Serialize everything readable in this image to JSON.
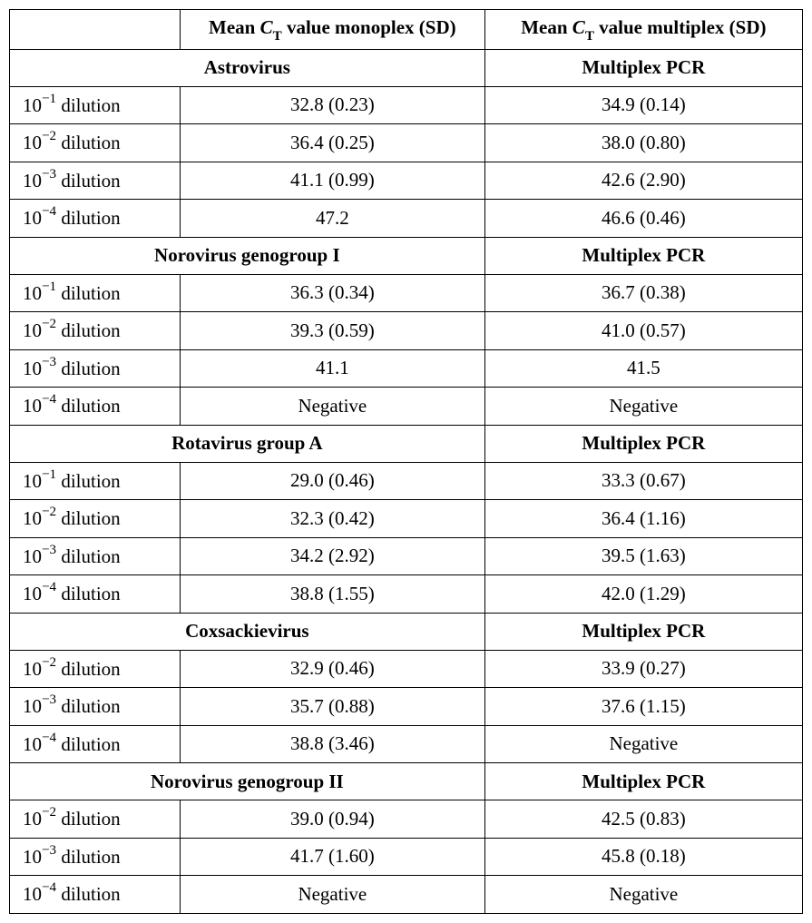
{
  "table": {
    "background_color": "#ffffff",
    "border_color": "#000000",
    "text_color": "#000000",
    "font_family_serif": "Georgia, Times New Roman, serif",
    "base_font_size_pt": 21,
    "headers": {
      "col1": "",
      "col2_pre": "Mean ",
      "col2_ct": "C",
      "col2_t": "T",
      "col2_post": " value monoplex (SD)",
      "col3_pre": "Mean ",
      "col3_ct": "C",
      "col3_t": "T",
      "col3_post": " value multiplex (SD)"
    },
    "sections": [
      {
        "left_label": "Astrovirus",
        "right_label": "Multiplex PCR",
        "rows": [
          {
            "exp": "−1",
            "dil_word": "dilution",
            "mono": "32.8 (0.23)",
            "multi": "34.9 (0.14)"
          },
          {
            "exp": "−2",
            "dil_word": "dilution",
            "mono": "36.4 (0.25)",
            "multi": "38.0 (0.80)"
          },
          {
            "exp": "−3",
            "dil_word": "dilution",
            "mono": "41.1 (0.99)",
            "multi": "42.6 (2.90)"
          },
          {
            "exp": "−4",
            "dil_word": "dilution",
            "mono": "47.2",
            "multi": "46.6 (0.46)"
          }
        ]
      },
      {
        "left_label": "Norovirus genogroup I",
        "right_label": "Multiplex PCR",
        "rows": [
          {
            "exp": "−1",
            "dil_word": "dilution",
            "mono": "36.3 (0.34)",
            "multi": "36.7 (0.38)"
          },
          {
            "exp": "−2",
            "dil_word": "dilution",
            "mono": "39.3 (0.59)",
            "multi": "41.0 (0.57)"
          },
          {
            "exp": "−3",
            "dil_word": "dilution",
            "mono": "41.1",
            "multi": "41.5"
          },
          {
            "exp": "−4",
            "dil_word": "dilution",
            "mono": "Negative",
            "multi": "Negative"
          }
        ]
      },
      {
        "left_label": "Rotavirus group A",
        "right_label": "Multiplex PCR",
        "rows": [
          {
            "exp": "−1",
            "dil_word": "dilution",
            "mono": "29.0 (0.46)",
            "multi": "33.3 (0.67)"
          },
          {
            "exp": "−2",
            "dil_word": "dilution",
            "mono": "32.3 (0.42)",
            "multi": "36.4 (1.16)"
          },
          {
            "exp": "−3",
            "dil_word": "dilution",
            "mono": "34.2 (2.92)",
            "multi": "39.5 (1.63)"
          },
          {
            "exp": "−4",
            "dil_word": "dilution",
            "mono": "38.8 (1.55)",
            "multi": "42.0 (1.29)"
          }
        ]
      },
      {
        "left_label": "Coxsackievirus",
        "right_label": "Multiplex PCR",
        "rows": [
          {
            "exp": "−2",
            "dil_word": "dilution",
            "mono": "32.9 (0.46)",
            "multi": "33.9 (0.27)"
          },
          {
            "exp": "−3",
            "dil_word": "dilution",
            "mono": "35.7 (0.88)",
            "multi": "37.6 (1.15)"
          },
          {
            "exp": "−4",
            "dil_word": "dilution",
            "mono": "38.8 (3.46)",
            "multi": "Negative"
          }
        ]
      },
      {
        "left_label": "Norovirus genogroup II",
        "right_label": "Multiplex PCR",
        "rows": [
          {
            "exp": "−2",
            "dil_word": "dilution",
            "mono": "39.0 (0.94)",
            "multi": "42.5 (0.83)"
          },
          {
            "exp": "−3",
            "dil_word": "dilution",
            "mono": "41.7 (1.60)",
            "multi": "45.8 (0.18)"
          },
          {
            "exp": "−4",
            "dil_word": "dilution",
            "mono": "Negative",
            "multi": "Negative"
          }
        ]
      }
    ],
    "dilution_base": "10"
  }
}
